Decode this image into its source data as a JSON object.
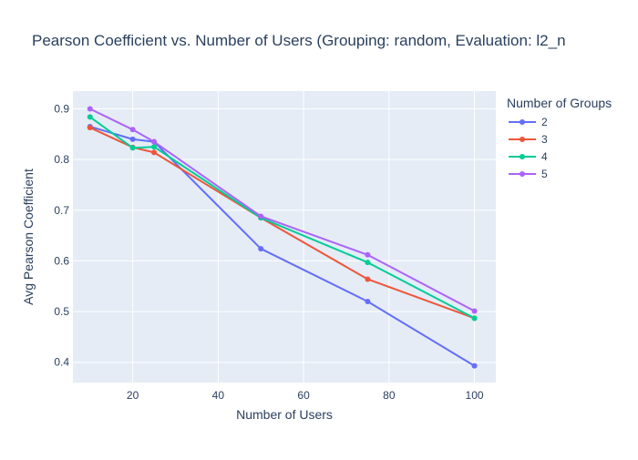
{
  "chart_data": {
    "type": "line",
    "title": "Pearson Coefficient vs. Number of Users (Grouping: random, Evaluation: l2_n",
    "xlabel": "Number of Users",
    "ylabel": "Avg Pearson Coefficient",
    "legend_title": "Number of Groups",
    "legend_position": "right",
    "grid": true,
    "xlim": [
      6,
      105
    ],
    "ylim": [
      0.36,
      0.935
    ],
    "x_ticks": [
      20,
      40,
      60,
      80,
      100
    ],
    "y_ticks": [
      0.4,
      0.5,
      0.6,
      0.7,
      0.8,
      0.9
    ],
    "x": [
      10,
      20,
      25,
      50,
      75,
      100
    ],
    "series": [
      {
        "name": "2",
        "color": "#636efa",
        "values": [
          0.865,
          0.84,
          0.835,
          0.624,
          0.52,
          0.393
        ]
      },
      {
        "name": "3",
        "color": "#EF553B",
        "values": [
          0.863,
          0.824,
          0.814,
          0.685,
          0.564,
          0.487
        ]
      },
      {
        "name": "4",
        "color": "#00cc96",
        "values": [
          0.884,
          0.823,
          0.825,
          0.685,
          0.597,
          0.487
        ]
      },
      {
        "name": "5",
        "color": "#ab63fa",
        "values": [
          0.9,
          0.859,
          0.835,
          0.688,
          0.612,
          0.501
        ]
      }
    ]
  },
  "colors": {
    "plot_background": "#e5ecf6",
    "grid": "#ffffff",
    "text": "#2a3f5f"
  }
}
